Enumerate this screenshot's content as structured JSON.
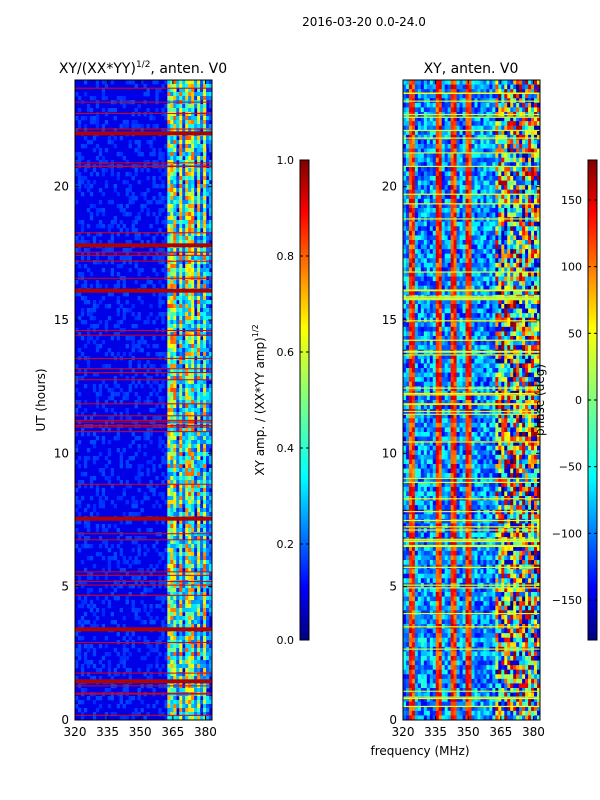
{
  "suptitle": "2016-03-20 0.0-24.0",
  "chart_data": [
    {
      "type": "heatmap",
      "title": "XY/(XX*YY)",
      "title_superscript": "1/2",
      "title_suffix": ", anten. V0",
      "xlabel": "",
      "ylabel": "UT (hours)",
      "xlim": [
        320,
        383
      ],
      "ylim": [
        0,
        24
      ],
      "xticks": [
        "320",
        "335",
        "350",
        "365",
        "380"
      ],
      "xtick_values": [
        320,
        335,
        350,
        365,
        380
      ],
      "yticks": [
        "0",
        "5",
        "10",
        "15",
        "20"
      ],
      "ytick_values": [
        0,
        5,
        10,
        15,
        20
      ],
      "colorbar": {
        "label": "XY amp. / (XX*YY amp)",
        "label_superscript": "1/2",
        "range": [
          0.0,
          1.0
        ],
        "ticks": [
          "0.0",
          "0.2",
          "0.4",
          "0.6",
          "0.8",
          "1.0"
        ],
        "tick_values": [
          0.0,
          0.2,
          0.4,
          0.6,
          0.8,
          1.0
        ]
      },
      "colormap": "jet",
      "dominant_value": 0.1,
      "high_value_bands_hours": [
        1.45,
        3.4,
        7.55,
        16.1,
        17.8,
        22.0
      ],
      "bright_band_freqs_mhz": [
        364,
        366,
        369,
        372,
        374,
        377,
        380
      ]
    },
    {
      "type": "heatmap",
      "title": "XY, anten. V0",
      "xlabel": "frequency (MHz)",
      "ylabel": "",
      "xlim": [
        320,
        383
      ],
      "ylim": [
        0,
        24
      ],
      "xticks": [
        "320",
        "335",
        "350",
        "365",
        "380"
      ],
      "xtick_values": [
        320,
        335,
        350,
        365,
        380
      ],
      "yticks": [
        "0",
        "5",
        "10",
        "15",
        "20"
      ],
      "ytick_values": [
        0,
        5,
        10,
        15,
        20
      ],
      "colorbar": {
        "label": "phase (deg)",
        "range": [
          -180,
          180
        ],
        "ticks": [
          "−150",
          "−100",
          "−50",
          "0",
          "50",
          "100",
          "150"
        ],
        "tick_values": [
          -150,
          -100,
          -50,
          0,
          50,
          100,
          150
        ]
      },
      "colormap": "jet",
      "red_stripe_freqs_mhz": [
        324,
        336,
        343,
        350
      ],
      "mixed_region_mhz": [
        362,
        383
      ]
    }
  ],
  "colors": {
    "jet_stops": [
      "#00007f",
      "#0000ff",
      "#007fff",
      "#00ffff",
      "#7fff7f",
      "#ffff00",
      "#ff7f00",
      "#ff0000",
      "#7f0000"
    ]
  }
}
